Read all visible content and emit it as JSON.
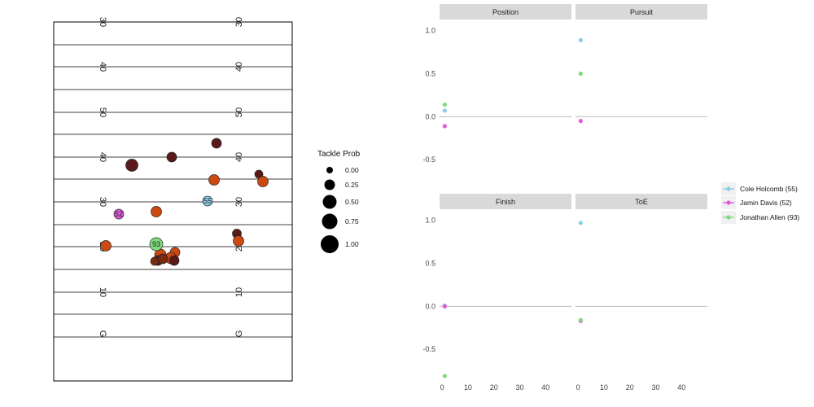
{
  "chart_data": [
    {
      "type": "scatter",
      "field": {
        "yard_lines": [
          "30",
          "40",
          "50",
          "40",
          "30",
          "20",
          "10",
          "G"
        ],
        "hash_marks": true
      },
      "size_legend": {
        "title": "Tackle Prob",
        "breaks": [
          0.0,
          0.25,
          0.5,
          0.75,
          1.0
        ],
        "labels": [
          "0.00",
          "0.25",
          "0.50",
          "0.75",
          "1.00"
        ]
      },
      "highlighted_players": [
        {
          "jersey": "93",
          "label": "93",
          "color": "#7ddc7d"
        },
        {
          "jersey": "52",
          "label": "52",
          "color": "#e05ae0"
        },
        {
          "jersey": "55",
          "label": "55",
          "color": "#87ceeb"
        }
      ],
      "palette": {
        "dark": "#5a1a1a",
        "orange": "#cc4a12",
        "brown": "#7a2a10"
      }
    },
    {
      "type": "scatter",
      "facets": [
        "Position",
        "Pursuit",
        "Finish",
        "ToE"
      ],
      "x_ticks": [
        "0",
        "10",
        "20",
        "30",
        "40"
      ],
      "y_ticks": [
        "1.0",
        "0.5",
        "0.0",
        "-0.5"
      ],
      "xlim": [
        -1,
        50
      ],
      "ylim": [
        -0.82,
        1.12
      ],
      "series": [
        {
          "name": "Cole Holcomb (55)",
          "color": "#87ceeb",
          "values": {
            "Position": [
              [
                1,
                0.07
              ]
            ],
            "Pursuit": [
              [
                1,
                0.89
              ]
            ],
            "Finish": [
              [
                1,
                0.01
              ]
            ],
            "ToE": [
              [
                1,
                0.97
              ]
            ]
          }
        },
        {
          "name": "Jamin Davis (52)",
          "color": "#e05ae0",
          "values": {
            "Position": [
              [
                1,
                -0.11
              ]
            ],
            "Pursuit": [
              [
                1,
                -0.05
              ]
            ],
            "Finish": [
              [
                1,
                0.0
              ]
            ],
            "ToE": [
              [
                1,
                -0.17
              ]
            ]
          }
        },
        {
          "name": "Jonathan Allen (93)",
          "color": "#7ddc7d",
          "values": {
            "Position": [
              [
                1,
                0.14
              ]
            ],
            "Pursuit": [
              [
                1,
                0.5
              ]
            ],
            "Finish": [
              [
                1,
                -0.81
              ]
            ],
            "ToE": [
              [
                1,
                -0.16
              ]
            ]
          }
        }
      ]
    }
  ]
}
